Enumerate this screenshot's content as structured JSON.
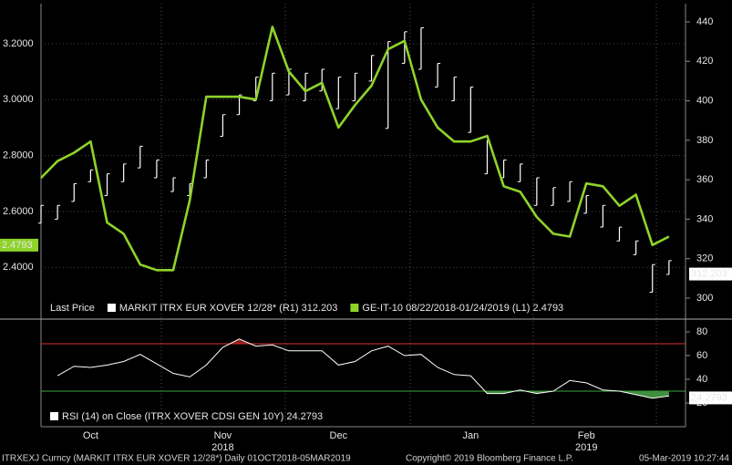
{
  "chart_data": [
    {
      "type": "line",
      "categories": [
        null,
        null,
        null,
        "Oct",
        null,
        null,
        null,
        null,
        null,
        null,
        null,
        "Nov",
        null,
        null,
        null,
        null,
        null,
        null,
        "Dec",
        null,
        null,
        null,
        null,
        null,
        null,
        null,
        "Jan",
        null,
        null,
        null,
        null,
        null,
        null,
        "Feb",
        null,
        null,
        null,
        null,
        null,
        null
      ],
      "category_years": [
        null,
        null,
        null,
        null,
        null,
        null,
        null,
        null,
        null,
        null,
        null,
        "2018",
        null,
        null,
        null,
        null,
        null,
        null,
        null,
        null,
        null,
        null,
        null,
        null,
        null,
        null,
        null,
        null,
        null,
        null,
        null,
        null,
        null,
        "2019",
        null,
        null,
        null,
        null,
        null,
        null
      ],
      "legend_title": "Last Price",
      "series": [
        {
          "name": "MARKIT ITRX EUR XOVER 12/28*",
          "legend_tag": "(R1)",
          "color": "#ffffff",
          "axis": "y2",
          "last_value": 312.203,
          "high": [
            347,
            347,
            358,
            365,
            363,
            368,
            377,
            370,
            361,
            358,
            370,
            393,
            403,
            412,
            414,
            416,
            414,
            416,
            412,
            414,
            423,
            430,
            435,
            437,
            419,
            412,
            407,
            380,
            370,
            368,
            361,
            356,
            359,
            352,
            347,
            336,
            329,
            317,
            319,
            null
          ],
          "low": [
            338,
            340,
            349,
            359,
            352,
            359,
            366,
            361,
            354,
            352,
            361,
            382,
            393,
            400,
            400,
            403,
            400,
            405,
            396,
            400,
            410,
            386,
            419,
            416,
            407,
            400,
            384,
            363,
            361,
            359,
            347,
            347,
            349,
            343,
            336,
            329,
            322,
            303,
            312,
            null
          ]
        },
        {
          "name": "GE-IT-10 08/22/2018-01/24/2019",
          "legend_tag": "(L1)",
          "color": "#8fd32a",
          "axis": "y",
          "last_value": 2.4793,
          "values": [
            2.72,
            2.78,
            2.81,
            2.85,
            2.56,
            2.52,
            2.41,
            2.39,
            2.39,
            2.64,
            3.01,
            3.01,
            3.01,
            3.0,
            3.26,
            3.1,
            3.03,
            3.06,
            2.9,
            2.98,
            3.05,
            3.18,
            3.21,
            3.0,
            2.9,
            2.85,
            2.85,
            2.87,
            2.69,
            2.67,
            2.58,
            2.52,
            2.51,
            2.7,
            2.69,
            2.62,
            2.66,
            2.48,
            2.51,
            null
          ]
        }
      ],
      "ylim": [
        2.28,
        3.33
      ],
      "yticks": [
        {
          "value": 2.4,
          "label": "2.4000"
        },
        {
          "value": 2.6,
          "label": "2.6000"
        },
        {
          "value": 2.8,
          "label": "2.8000"
        },
        {
          "value": 3.0,
          "label": "3.0000"
        },
        {
          "value": 3.2,
          "label": "3.2000"
        }
      ],
      "y2lim": [
        298.6,
        447.4
      ],
      "y2ticks": [
        300,
        320,
        340,
        360,
        380,
        400,
        420,
        440
      ],
      "grid": true
    },
    {
      "type": "rsi",
      "series": [
        {
          "name": "RSI (14)  on Close (ITRX XOVER CDSI GEN 10Y)",
          "color": "#ffffff",
          "last_value": 24.2793,
          "values": [
            null,
            43,
            51,
            50,
            52,
            55,
            61,
            53,
            45,
            42,
            52,
            67,
            74,
            68,
            69,
            64,
            64,
            64,
            52,
            55,
            64,
            68,
            60,
            61,
            50,
            44,
            43,
            28,
            28,
            31,
            28,
            30,
            39,
            37,
            31,
            30,
            27,
            24,
            26,
            null
          ]
        }
      ],
      "upper": 70,
      "lower": 30,
      "upper_color": "#e03030",
      "lower_color": "#3fa33f",
      "fill_color": "#3f8f3f",
      "ylim": [
        2.3,
        89.2
      ],
      "yticks": [
        20,
        40,
        60,
        80
      ]
    }
  ],
  "footer": {
    "left": "ITRXEXJ Curncy (MARKIT ITRX EUR XOVER 12/28*)  Daily 01OCT2018-05MAR2019",
    "center": "Copyright© 2019 Bloomberg Finance L.P.",
    "right": "05-Mar-2019 10:27:44"
  }
}
